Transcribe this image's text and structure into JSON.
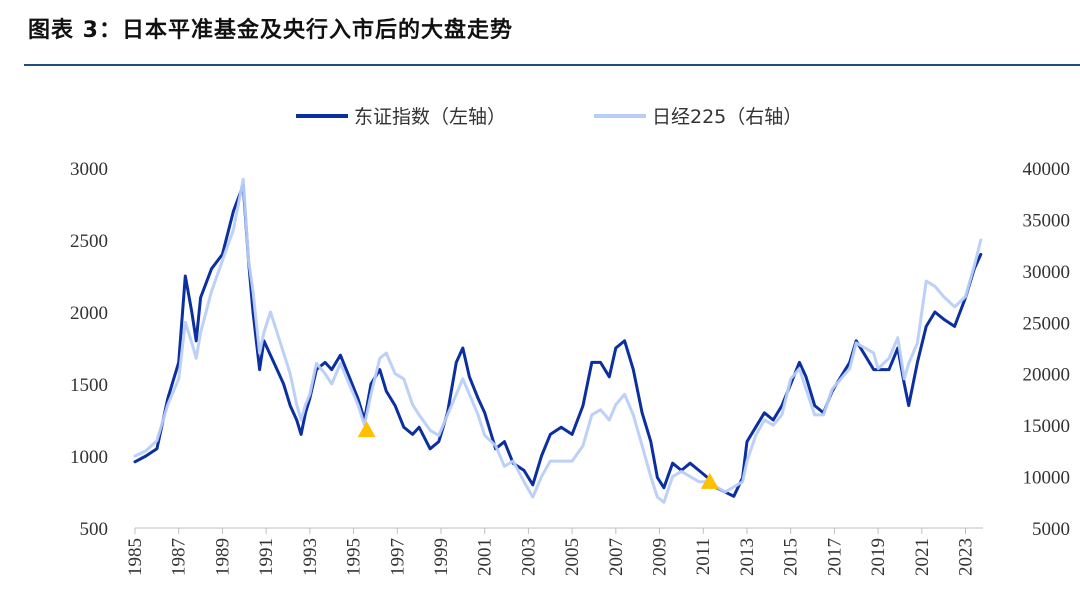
{
  "title": "图表 3：日本平准基金及央行入市后的大盘走势",
  "chart_data": {
    "type": "line",
    "xlim": [
      1985,
      2023.8
    ],
    "x_ticks": [
      "1985",
      "1987",
      "1989",
      "1991",
      "1993",
      "1995",
      "1997",
      "1999",
      "2001",
      "2003",
      "2005",
      "2007",
      "2009",
      "2011",
      "2013",
      "2015",
      "2017",
      "2019",
      "2021",
      "2023"
    ],
    "y_left": {
      "ylim": [
        500,
        3000
      ],
      "ticks": [
        "500",
        "1000",
        "1500",
        "2000",
        "2500",
        "3000"
      ]
    },
    "y_right": {
      "ylim": [
        5000,
        40000
      ],
      "ticks": [
        "5000",
        "10000",
        "15000",
        "20000",
        "25000",
        "30000",
        "35000",
        "40000"
      ]
    },
    "grid": false,
    "legend_position": "top-center",
    "series": [
      {
        "name": "东证指数（左轴）",
        "axis": "left",
        "color": "#0b2f9f",
        "x": [
          1985.0,
          1985.5,
          1986.0,
          1986.5,
          1987.0,
          1987.3,
          1987.6,
          1987.8,
          1988.0,
          1988.5,
          1989.0,
          1989.5,
          1989.95,
          1990.2,
          1990.4,
          1990.7,
          1990.9,
          1991.2,
          1991.5,
          1991.8,
          1992.1,
          1992.4,
          1992.6,
          1992.8,
          1993.0,
          1993.3,
          1993.7,
          1994.0,
          1994.4,
          1994.8,
          1995.2,
          1995.5,
          1995.8,
          1996.2,
          1996.5,
          1996.9,
          1997.3,
          1997.7,
          1998.0,
          1998.5,
          1998.9,
          1999.3,
          1999.7,
          2000.0,
          2000.3,
          2000.7,
          2001.0,
          2001.5,
          2001.9,
          2002.3,
          2002.8,
          2003.2,
          2003.6,
          2004.0,
          2004.5,
          2005.0,
          2005.5,
          2005.9,
          2006.3,
          2006.7,
          2007.0,
          2007.4,
          2007.8,
          2008.2,
          2008.6,
          2008.9,
          2009.2,
          2009.6,
          2010.0,
          2010.4,
          2010.8,
          2011.2,
          2011.6,
          2012.0,
          2012.4,
          2012.8,
          2013.0,
          2013.4,
          2013.8,
          2014.2,
          2014.6,
          2015.0,
          2015.4,
          2015.7,
          2016.1,
          2016.5,
          2016.9,
          2017.3,
          2017.7,
          2018.0,
          2018.4,
          2018.8,
          2019.0,
          2019.5,
          2019.9,
          2020.2,
          2020.4,
          2020.8,
          2021.2,
          2021.6,
          2022.0,
          2022.5,
          2023.0,
          2023.4,
          2023.7
        ],
        "values": [
          960,
          1000,
          1050,
          1400,
          1650,
          2250,
          2000,
          1800,
          2100,
          2300,
          2400,
          2700,
          2880,
          2350,
          2000,
          1600,
          1800,
          1700,
          1600,
          1500,
          1350,
          1250,
          1150,
          1300,
          1400,
          1600,
          1650,
          1600,
          1700,
          1550,
          1400,
          1250,
          1500,
          1600,
          1450,
          1350,
          1200,
          1150,
          1200,
          1050,
          1100,
          1300,
          1650,
          1750,
          1550,
          1400,
          1300,
          1050,
          1100,
          950,
          900,
          800,
          1000,
          1150,
          1200,
          1150,
          1350,
          1650,
          1650,
          1550,
          1750,
          1800,
          1600,
          1300,
          1100,
          850,
          780,
          950,
          900,
          950,
          900,
          850,
          780,
          750,
          720,
          850,
          1100,
          1200,
          1300,
          1250,
          1350,
          1500,
          1650,
          1550,
          1350,
          1300,
          1450,
          1550,
          1650,
          1800,
          1700,
          1600,
          1600,
          1600,
          1750,
          1500,
          1350,
          1650,
          1900,
          2000,
          1950,
          1900,
          2100,
          2300,
          2400
        ]
      },
      {
        "name": "日经225（右轴）",
        "axis": "right",
        "color": "#b8cdf8",
        "x": [
          1985.0,
          1985.5,
          1986.0,
          1986.5,
          1987.0,
          1987.3,
          1987.6,
          1987.8,
          1988.0,
          1988.5,
          1989.0,
          1989.5,
          1989.95,
          1990.2,
          1990.4,
          1990.7,
          1990.9,
          1991.2,
          1991.5,
          1991.8,
          1992.1,
          1992.4,
          1992.6,
          1992.8,
          1993.0,
          1993.3,
          1993.7,
          1994.0,
          1994.4,
          1994.8,
          1995.2,
          1995.5,
          1995.8,
          1996.2,
          1996.5,
          1996.9,
          1997.3,
          1997.7,
          1998.0,
          1998.5,
          1998.9,
          1999.3,
          1999.7,
          2000.0,
          2000.3,
          2000.7,
          2001.0,
          2001.5,
          2001.9,
          2002.3,
          2002.8,
          2003.2,
          2003.6,
          2004.0,
          2004.5,
          2005.0,
          2005.5,
          2005.9,
          2006.3,
          2006.7,
          2007.0,
          2007.4,
          2007.8,
          2008.2,
          2008.6,
          2008.9,
          2009.2,
          2009.6,
          2010.0,
          2010.4,
          2010.8,
          2011.2,
          2011.6,
          2012.0,
          2012.4,
          2012.8,
          2013.0,
          2013.4,
          2013.8,
          2014.2,
          2014.6,
          2015.0,
          2015.4,
          2015.7,
          2016.1,
          2016.5,
          2016.9,
          2017.3,
          2017.7,
          2018.0,
          2018.4,
          2018.8,
          2019.0,
          2019.5,
          2019.9,
          2020.2,
          2020.4,
          2020.8,
          2021.2,
          2021.6,
          2022.0,
          2022.5,
          2023.0,
          2023.4,
          2023.7
        ],
        "values": [
          12000,
          12500,
          13500,
          17000,
          19500,
          25000,
          23000,
          21500,
          24000,
          28000,
          31000,
          34000,
          38900,
          31000,
          28000,
          22000,
          24000,
          26000,
          24000,
          22000,
          20000,
          17000,
          15500,
          17000,
          18000,
          21000,
          20000,
          19000,
          21000,
          19000,
          17000,
          15000,
          18000,
          21500,
          22000,
          20000,
          19500,
          17000,
          16000,
          14500,
          14000,
          16000,
          18000,
          19500,
          18000,
          16000,
          14000,
          13000,
          11000,
          11500,
          9500,
          8000,
          10000,
          11500,
          11500,
          11500,
          13000,
          16000,
          16500,
          15500,
          17000,
          18000,
          16000,
          13000,
          10000,
          8000,
          7500,
          10000,
          10500,
          10000,
          9500,
          9500,
          9000,
          8500,
          9000,
          9500,
          11500,
          14000,
          15500,
          15000,
          16000,
          19500,
          20500,
          18500,
          16000,
          16000,
          18500,
          19500,
          20500,
          23000,
          22500,
          22000,
          20500,
          21500,
          23500,
          19500,
          21000,
          23000,
          29000,
          28500,
          27500,
          26500,
          27500,
          30500,
          33000
        ]
      }
    ],
    "annotations": [
      {
        "marker": "triangle",
        "color": "#ffc000",
        "x": 1995.6,
        "y": 1180,
        "axis": "left"
      },
      {
        "marker": "triangle",
        "color": "#ffc000",
        "x": 2011.3,
        "y": 820,
        "axis": "left"
      }
    ]
  }
}
